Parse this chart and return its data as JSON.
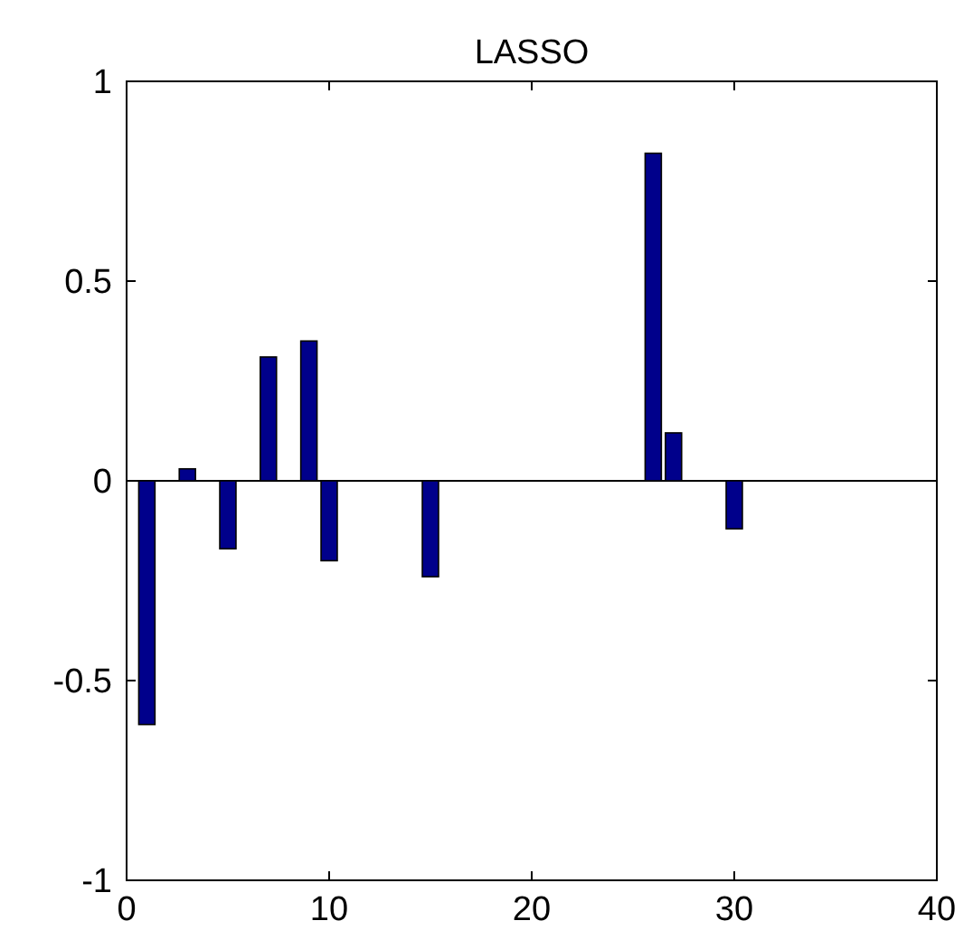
{
  "chart_data": {
    "type": "bar",
    "title": "LASSO",
    "x": [
      1,
      3,
      5,
      7,
      9,
      10,
      15,
      26,
      27,
      30
    ],
    "values": [
      -0.61,
      0.03,
      -0.17,
      0.31,
      0.35,
      -0.2,
      -0.24,
      0.82,
      0.12,
      -0.12
    ],
    "color": "#00008b",
    "xlim": [
      0,
      40
    ],
    "xticks": [
      0,
      10,
      20,
      30,
      40
    ],
    "ylim": [
      -1,
      1
    ],
    "yticks": [
      -1,
      {
        "value": -0.5,
        "label": "-0.5"
      },
      0,
      0.5,
      1
    ],
    "ref_lines": [
      {
        "axis": "y",
        "value": 0,
        "color": "#000000"
      }
    ],
    "grid": false
  }
}
